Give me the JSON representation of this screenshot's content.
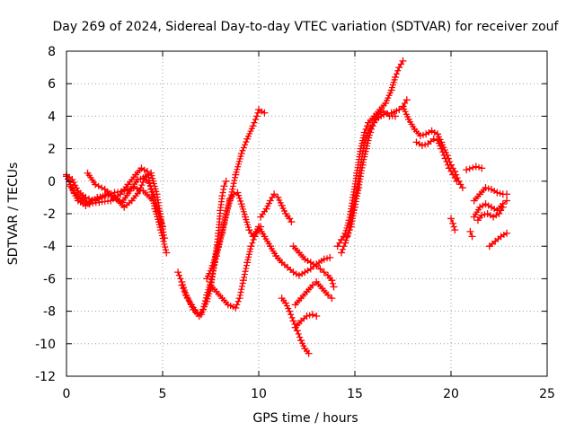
{
  "chart_data": {
    "type": "scatter",
    "title": "Day 269 of 2024, Sidereal Day-to-day VTEC variation (SDTVAR) for receiver zouf",
    "xlabel": "GPS time / hours",
    "ylabel": "SDTVAR / TECUs",
    "xlim": [
      0,
      25
    ],
    "ylim": [
      -12,
      8
    ],
    "xticks": [
      0,
      5,
      10,
      15,
      20,
      25
    ],
    "yticks": [
      -12,
      -10,
      -8,
      -6,
      -4,
      -2,
      0,
      2,
      4,
      6,
      8
    ],
    "grid": true,
    "marker": "+",
    "color": "#ff0000",
    "series": [
      {
        "name": "trace-1",
        "points": [
          [
            0.0,
            0.4
          ],
          [
            0.3,
            0.1
          ],
          [
            0.6,
            -0.6
          ],
          [
            1.0,
            -1.0
          ],
          [
            1.5,
            -1.2
          ],
          [
            2.0,
            -0.9
          ],
          [
            2.5,
            -0.7
          ],
          [
            3.0,
            -0.6
          ],
          [
            3.5,
            -0.4
          ],
          [
            4.0,
            -0.6
          ],
          [
            4.5,
            -1.2
          ],
          [
            4.8,
            -2.0
          ],
          [
            5.0,
            -2.8
          ]
        ]
      },
      {
        "name": "trace-2",
        "points": [
          [
            0.0,
            0.3
          ],
          [
            0.4,
            -0.7
          ],
          [
            0.8,
            -1.1
          ],
          [
            1.2,
            -1.4
          ],
          [
            1.7,
            -1.3
          ],
          [
            2.3,
            -1.2
          ],
          [
            2.8,
            -0.8
          ],
          [
            3.2,
            -0.2
          ],
          [
            3.6,
            0.4
          ],
          [
            3.9,
            0.8
          ],
          [
            4.2,
            0.6
          ],
          [
            4.4,
            -0.5
          ],
          [
            4.6,
            -1.7
          ],
          [
            4.9,
            -3.0
          ],
          [
            5.2,
            -4.4
          ]
        ]
      },
      {
        "name": "trace-3",
        "points": [
          [
            0.2,
            -0.3
          ],
          [
            0.6,
            -1.2
          ],
          [
            1.0,
            -1.5
          ],
          [
            1.6,
            -1.0
          ],
          [
            2.2,
            -0.8
          ],
          [
            2.6,
            -1.1
          ],
          [
            3.0,
            -1.6
          ],
          [
            3.4,
            -1.2
          ],
          [
            3.8,
            -0.6
          ],
          [
            4.1,
            0.3
          ],
          [
            4.4,
            0.5
          ],
          [
            4.7,
            -0.8
          ],
          [
            4.9,
            -2.2
          ],
          [
            5.1,
            -3.5
          ]
        ]
      },
      {
        "name": "trace-4",
        "points": [
          [
            1.1,
            0.5
          ],
          [
            1.5,
            -0.2
          ],
          [
            2.0,
            -0.5
          ],
          [
            2.5,
            -1.0
          ],
          [
            2.9,
            -1.3
          ],
          [
            3.3,
            -0.6
          ],
          [
            3.7,
            0.1
          ],
          [
            4.0,
            0.2
          ],
          [
            4.3,
            -0.1
          ],
          [
            4.6,
            -1.0
          ],
          [
            4.9,
            -2.5
          ]
        ]
      },
      {
        "name": "trace-5",
        "points": [
          [
            5.8,
            -5.6
          ],
          [
            6.0,
            -6.2
          ],
          [
            6.3,
            -7.2
          ],
          [
            6.6,
            -7.9
          ],
          [
            6.9,
            -8.3
          ],
          [
            7.1,
            -7.9
          ],
          [
            7.3,
            -7.0
          ],
          [
            7.5,
            -6.2
          ],
          [
            7.8,
            -4.6
          ],
          [
            8.1,
            -3.2
          ],
          [
            8.3,
            -2.0
          ],
          [
            8.5,
            -1.1
          ],
          [
            8.7,
            -0.8
          ],
          [
            8.9,
            -0.7
          ],
          [
            9.1,
            -1.4
          ],
          [
            9.3,
            -2.2
          ],
          [
            9.5,
            -3.0
          ],
          [
            9.7,
            -3.4
          ],
          [
            10.0,
            -2.8
          ]
        ]
      },
      {
        "name": "trace-6",
        "points": [
          [
            6.0,
            -6.4
          ],
          [
            6.2,
            -7.0
          ],
          [
            6.5,
            -7.6
          ],
          [
            6.8,
            -8.1
          ],
          [
            7.0,
            -8.2
          ],
          [
            7.3,
            -7.4
          ],
          [
            7.5,
            -6.6
          ],
          [
            7.7,
            -5.0
          ],
          [
            7.9,
            -3.2
          ],
          [
            8.0,
            -1.8
          ],
          [
            8.1,
            -0.9
          ],
          [
            8.2,
            -0.3
          ],
          [
            8.3,
            0.0
          ]
        ]
      },
      {
        "name": "trace-7",
        "points": [
          [
            7.5,
            -6.4
          ],
          [
            7.8,
            -6.8
          ],
          [
            8.1,
            -7.2
          ],
          [
            8.4,
            -7.6
          ],
          [
            8.8,
            -7.8
          ],
          [
            9.0,
            -7.2
          ],
          [
            9.2,
            -6.1
          ],
          [
            9.4,
            -5.0
          ],
          [
            9.6,
            -4.0
          ],
          [
            9.8,
            -3.4
          ],
          [
            10.0,
            -3.0
          ],
          [
            10.1,
            -2.8
          ]
        ]
      },
      {
        "name": "trace-8",
        "points": [
          [
            7.3,
            -6.0
          ],
          [
            7.6,
            -5.2
          ],
          [
            7.9,
            -4.0
          ],
          [
            8.2,
            -2.6
          ],
          [
            8.5,
            -1.2
          ],
          [
            8.8,
            0.4
          ],
          [
            9.1,
            1.7
          ],
          [
            9.4,
            2.6
          ],
          [
            9.7,
            3.4
          ],
          [
            9.9,
            4.0
          ],
          [
            10.0,
            4.4
          ],
          [
            10.3,
            4.2
          ]
        ]
      },
      {
        "name": "trace-9",
        "points": [
          [
            10.1,
            -2.2
          ],
          [
            10.4,
            -1.7
          ],
          [
            10.6,
            -1.2
          ],
          [
            10.8,
            -0.8
          ],
          [
            11.0,
            -1.0
          ],
          [
            11.2,
            -1.5
          ],
          [
            11.4,
            -2.0
          ],
          [
            11.6,
            -2.3
          ],
          [
            11.7,
            -2.5
          ]
        ]
      },
      {
        "name": "trace-10",
        "points": [
          [
            10.0,
            -2.8
          ],
          [
            10.3,
            -3.4
          ],
          [
            10.6,
            -4.0
          ],
          [
            10.9,
            -4.6
          ],
          [
            11.2,
            -5.0
          ],
          [
            11.5,
            -5.3
          ],
          [
            11.8,
            -5.6
          ],
          [
            12.1,
            -5.8
          ],
          [
            12.4,
            -5.6
          ],
          [
            12.7,
            -5.4
          ],
          [
            13.0,
            -5.1
          ],
          [
            13.4,
            -4.8
          ],
          [
            13.7,
            -4.7
          ]
        ]
      },
      {
        "name": "trace-11",
        "points": [
          [
            11.8,
            -4.0
          ],
          [
            12.1,
            -4.4
          ],
          [
            12.4,
            -4.8
          ],
          [
            12.7,
            -5.0
          ],
          [
            13.0,
            -5.2
          ],
          [
            13.2,
            -5.4
          ],
          [
            13.4,
            -5.6
          ],
          [
            13.6,
            -5.8
          ],
          [
            13.8,
            -6.1
          ],
          [
            13.9,
            -6.5
          ]
        ]
      },
      {
        "name": "trace-12",
        "points": [
          [
            11.2,
            -7.2
          ],
          [
            11.4,
            -7.5
          ],
          [
            11.6,
            -8.0
          ],
          [
            11.8,
            -8.6
          ],
          [
            12.0,
            -9.2
          ],
          [
            12.2,
            -9.8
          ],
          [
            12.4,
            -10.3
          ],
          [
            12.6,
            -10.6
          ]
        ]
      },
      {
        "name": "trace-13",
        "points": [
          [
            11.9,
            -7.6
          ],
          [
            12.2,
            -7.2
          ],
          [
            12.5,
            -6.8
          ],
          [
            12.8,
            -6.4
          ],
          [
            13.0,
            -6.2
          ],
          [
            13.3,
            -6.6
          ],
          [
            13.6,
            -7.0
          ],
          [
            13.8,
            -7.2
          ]
        ]
      },
      {
        "name": "trace-14",
        "points": [
          [
            11.9,
            -9.0
          ],
          [
            12.2,
            -8.6
          ],
          [
            12.5,
            -8.3
          ],
          [
            12.8,
            -8.2
          ],
          [
            13.0,
            -8.3
          ]
        ]
      },
      {
        "name": "trace-15",
        "points": [
          [
            14.1,
            -4.0
          ],
          [
            14.3,
            -3.6
          ],
          [
            14.5,
            -3.2
          ],
          [
            14.7,
            -2.4
          ],
          [
            14.9,
            -1.0
          ],
          [
            15.1,
            0.5
          ],
          [
            15.3,
            2.0
          ],
          [
            15.5,
            3.0
          ],
          [
            15.7,
            3.6
          ],
          [
            16.0,
            4.0
          ],
          [
            16.3,
            4.4
          ],
          [
            16.6,
            4.8
          ],
          [
            16.9,
            5.6
          ],
          [
            17.1,
            6.4
          ],
          [
            17.3,
            7.0
          ],
          [
            17.5,
            7.4
          ]
        ]
      },
      {
        "name": "trace-16",
        "points": [
          [
            14.3,
            -4.4
          ],
          [
            14.5,
            -3.8
          ],
          [
            14.7,
            -3.0
          ],
          [
            14.9,
            -1.8
          ],
          [
            15.1,
            -0.5
          ],
          [
            15.3,
            1.0
          ],
          [
            15.5,
            2.4
          ],
          [
            15.8,
            3.3
          ],
          [
            16.1,
            3.8
          ],
          [
            16.5,
            4.1
          ],
          [
            16.9,
            4.2
          ],
          [
            17.3,
            4.4
          ],
          [
            17.5,
            4.6
          ],
          [
            17.7,
            5.0
          ]
        ]
      },
      {
        "name": "trace-17",
        "points": [
          [
            14.6,
            -3.4
          ],
          [
            14.8,
            -2.8
          ],
          [
            15.0,
            -1.6
          ],
          [
            15.2,
            -0.4
          ],
          [
            15.4,
            1.0
          ],
          [
            15.6,
            2.0
          ],
          [
            15.8,
            3.0
          ],
          [
            16.0,
            3.6
          ],
          [
            16.2,
            4.1
          ],
          [
            16.5,
            4.3
          ],
          [
            16.8,
            4.0
          ],
          [
            17.1,
            4.0
          ]
        ]
      },
      {
        "name": "trace-18",
        "points": [
          [
            17.5,
            4.6
          ],
          [
            17.8,
            3.8
          ],
          [
            18.1,
            3.2
          ],
          [
            18.4,
            2.8
          ],
          [
            18.7,
            2.9
          ],
          [
            19.0,
            3.1
          ],
          [
            19.3,
            2.9
          ],
          [
            19.5,
            2.4
          ],
          [
            19.8,
            1.6
          ],
          [
            20.0,
            1.0
          ],
          [
            20.2,
            0.6
          ],
          [
            20.4,
            0.0
          ],
          [
            20.6,
            -0.4
          ]
        ]
      },
      {
        "name": "trace-19",
        "points": [
          [
            18.2,
            2.4
          ],
          [
            18.5,
            2.2
          ],
          [
            18.8,
            2.3
          ],
          [
            19.1,
            2.6
          ],
          [
            19.3,
            2.5
          ],
          [
            19.5,
            2.0
          ],
          [
            19.7,
            1.4
          ],
          [
            19.9,
            0.8
          ],
          [
            20.1,
            0.4
          ],
          [
            20.3,
            0.0
          ]
        ]
      },
      {
        "name": "trace-20",
        "points": [
          [
            20.0,
            -2.3
          ],
          [
            20.1,
            -2.6
          ],
          [
            20.2,
            -3.0
          ]
        ]
      },
      {
        "name": "trace-21",
        "points": [
          [
            20.8,
            0.7
          ],
          [
            21.3,
            0.9
          ],
          [
            21.6,
            0.8
          ]
        ]
      },
      {
        "name": "trace-22",
        "points": [
          [
            21.2,
            -1.2
          ],
          [
            21.5,
            -0.8
          ],
          [
            21.8,
            -0.4
          ],
          [
            22.1,
            -0.5
          ],
          [
            22.4,
            -0.7
          ],
          [
            22.7,
            -0.8
          ],
          [
            22.9,
            -0.8
          ]
        ]
      },
      {
        "name": "trace-23",
        "points": [
          [
            21.2,
            -2.2
          ],
          [
            21.5,
            -1.6
          ],
          [
            21.8,
            -1.4
          ],
          [
            22.1,
            -1.6
          ],
          [
            22.4,
            -1.8
          ],
          [
            22.7,
            -1.4
          ],
          [
            22.9,
            -1.2
          ]
        ]
      },
      {
        "name": "trace-24",
        "points": [
          [
            21.4,
            -2.4
          ],
          [
            21.6,
            -2.1
          ],
          [
            21.9,
            -2.0
          ],
          [
            22.2,
            -2.2
          ],
          [
            22.5,
            -2.0
          ],
          [
            22.7,
            -1.6
          ]
        ]
      },
      {
        "name": "trace-25",
        "points": [
          [
            21.0,
            -3.1
          ],
          [
            21.1,
            -3.4
          ]
        ]
      },
      {
        "name": "trace-26",
        "points": [
          [
            22.0,
            -4.0
          ],
          [
            22.3,
            -3.7
          ],
          [
            22.6,
            -3.4
          ],
          [
            22.9,
            -3.2
          ]
        ]
      }
    ]
  }
}
